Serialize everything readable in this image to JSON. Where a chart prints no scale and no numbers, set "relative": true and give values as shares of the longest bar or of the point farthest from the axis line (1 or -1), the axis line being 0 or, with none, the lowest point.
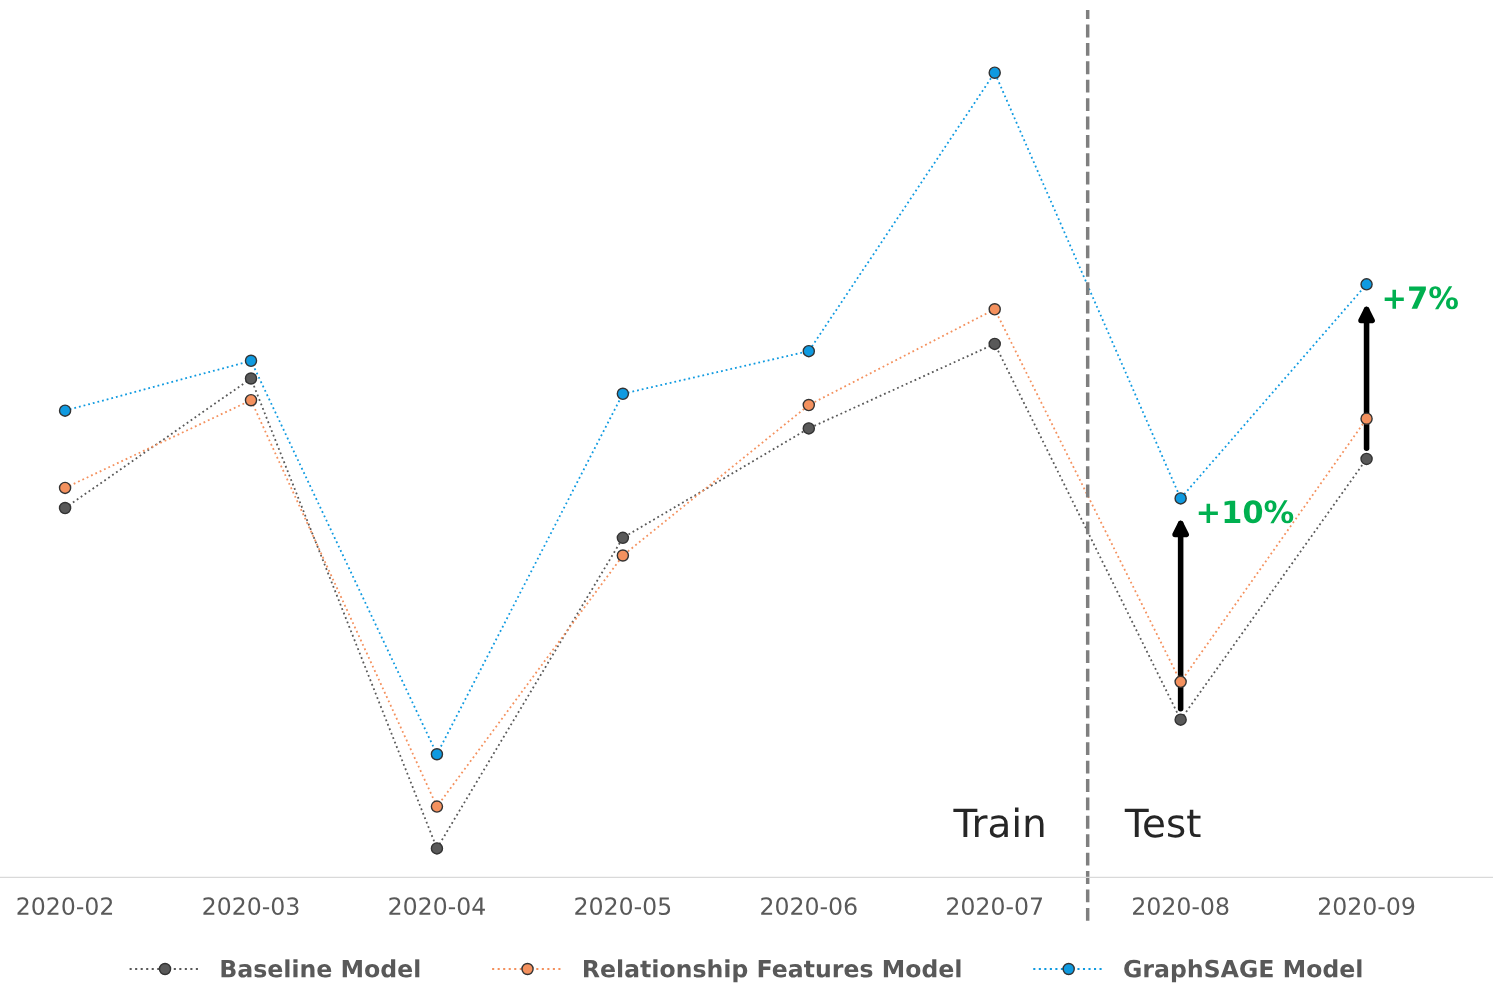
{
  "chart_data": {
    "type": "line",
    "relative": true,
    "categories": [
      "2020-02",
      "2020-03",
      "2020-04",
      "2020-05",
      "2020-06",
      "2020-07",
      "2020-08",
      "2020-09"
    ],
    "series": [
      {
        "name": "Baseline Model",
        "color": "#595959",
        "values": [
          0.459,
          0.62,
          0.036,
          0.422,
          0.558,
          0.663,
          0.196,
          0.52
        ]
      },
      {
        "name": "Relationship Features Model",
        "color": "#f4915e",
        "values": [
          0.484,
          0.593,
          0.088,
          0.4,
          0.587,
          0.706,
          0.243,
          0.57
        ]
      },
      {
        "name": "GraphSAGE Model",
        "color": "#0f9ae0",
        "values": [
          0.58,
          0.642,
          0.153,
          0.601,
          0.654,
          1.0,
          0.471,
          0.737
        ]
      }
    ],
    "marker": "circle",
    "line_style": "dotted",
    "grid": false,
    "legend": "bottom",
    "annotations": [
      "Train",
      "Test",
      {
        "text": "+10%",
        "x": "2020-08",
        "y": 0.471
      },
      {
        "text": "+7%",
        "x": "2020-09",
        "y": 0.737
      }
    ]
  }
}
